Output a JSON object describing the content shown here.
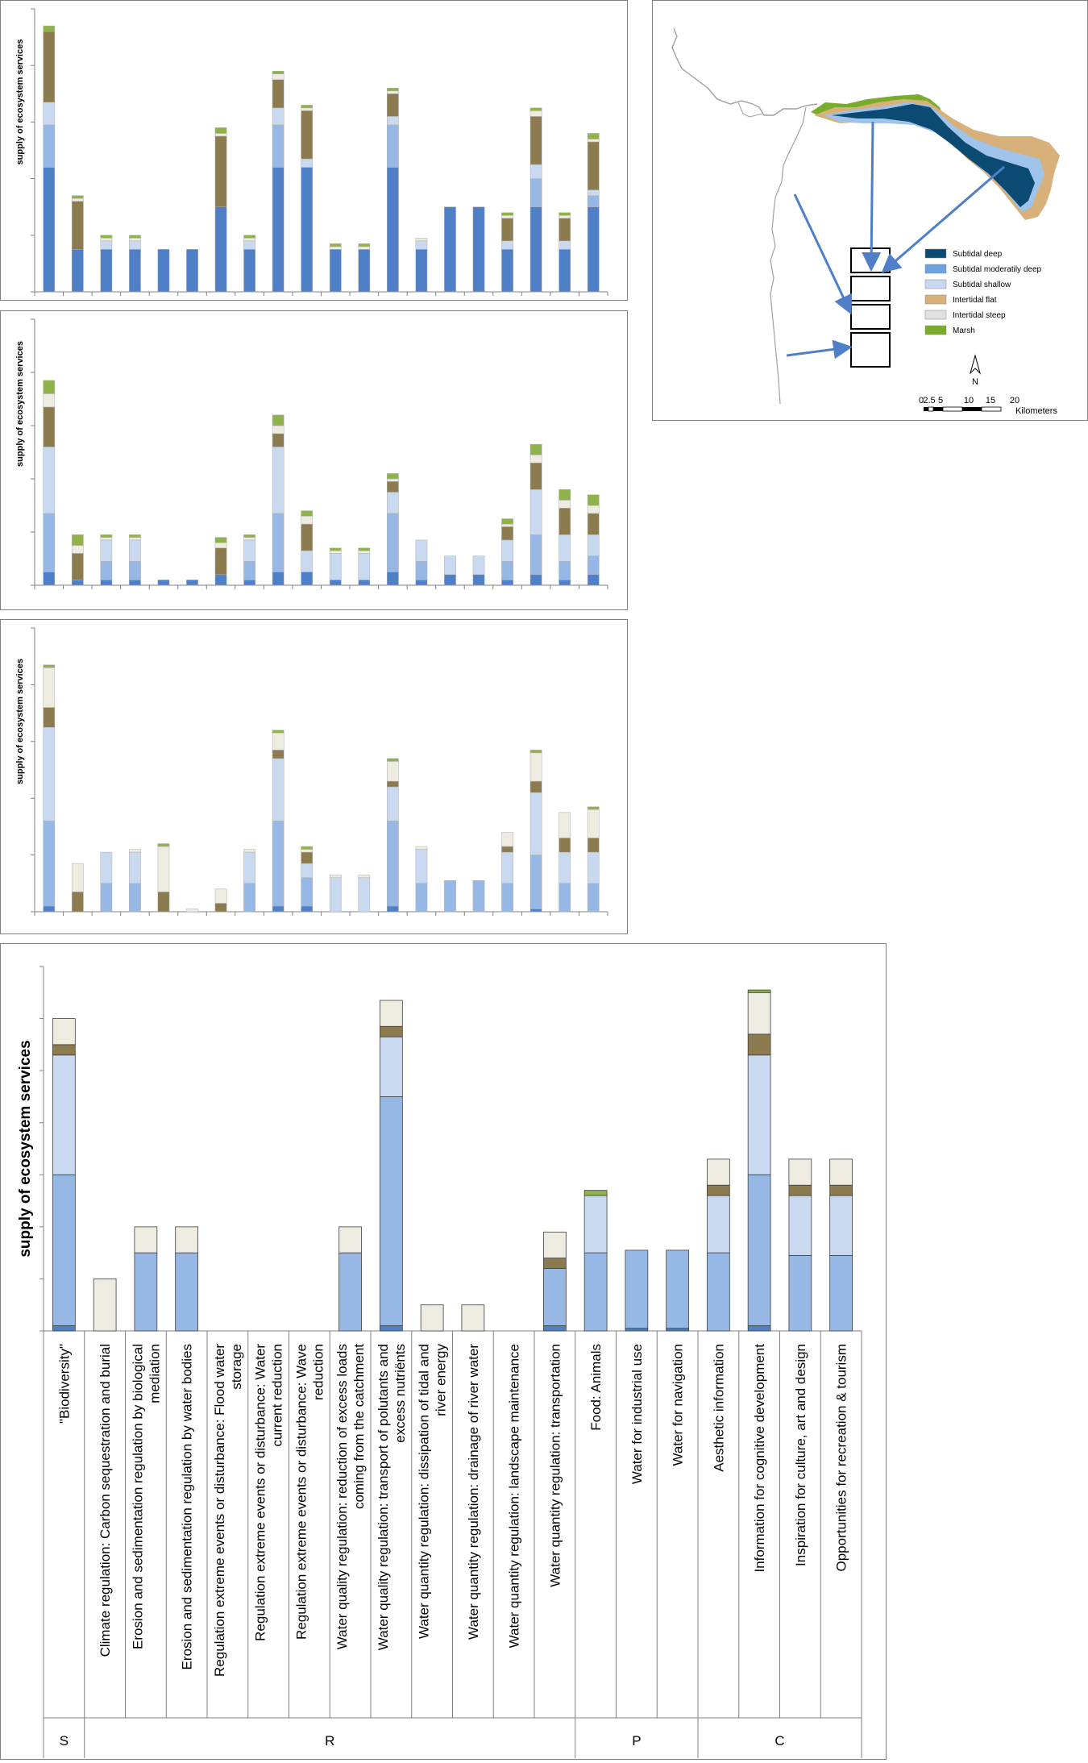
{
  "legend": {
    "classes": [
      {
        "label": "Subtidal deep",
        "color": "#0b4a73"
      },
      {
        "label": "Subtidal moderatily deep",
        "color": "#6fa3e0"
      },
      {
        "label": "Subtidal shallow",
        "color": "#c7d8f0"
      },
      {
        "label": "Intertidal flat",
        "color": "#d8b07a"
      },
      {
        "label": "Intertidal steep",
        "color": "#e0e0e0"
      },
      {
        "label": "Marsh",
        "color": "#7aac2c"
      }
    ],
    "north": "N",
    "scale_ticks": [
      "0",
      "2.5",
      "5",
      "10",
      "15",
      "20"
    ],
    "scale_unit": "Kilometers"
  },
  "stack_colors": [
    "#4f7fc7",
    "#97b7e4",
    "#c9d9ef",
    "#8b7b4e",
    "#eeebe0",
    "#8fb24a"
  ],
  "chart_data": [
    {
      "type": "bar",
      "stacked": true,
      "ylabel": "supply of ecosystem services",
      "ylim": [
        0,
        1
      ],
      "grid": false,
      "values": [
        [
          0.44,
          0.15,
          0.08,
          0.25,
          0,
          0.02
        ],
        [
          0.15,
          0,
          0,
          0.17,
          0.01,
          0.01
        ],
        [
          0.15,
          0,
          0.03,
          0,
          0.01,
          0.01
        ],
        [
          0.15,
          0,
          0.03,
          0,
          0.01,
          0.01
        ],
        [
          0.15,
          0,
          0,
          0,
          0,
          0
        ],
        [
          0.15,
          0,
          0,
          0,
          0,
          0
        ],
        [
          0.3,
          0,
          0,
          0.25,
          0.01,
          0.02
        ],
        [
          0.15,
          0,
          0.03,
          0,
          0.01,
          0.01
        ],
        [
          0.44,
          0.15,
          0.06,
          0.1,
          0.02,
          0.01
        ],
        [
          0.44,
          0,
          0.03,
          0.17,
          0.01,
          0.01
        ],
        [
          0.15,
          0,
          0,
          0,
          0.01,
          0.01
        ],
        [
          0.15,
          0,
          0,
          0,
          0.01,
          0.01
        ],
        [
          0.44,
          0.15,
          0.03,
          0.08,
          0.01,
          0.01
        ],
        [
          0.15,
          0,
          0.03,
          0,
          0.01,
          0
        ],
        [
          0.3,
          0,
          0,
          0,
          0,
          0
        ],
        [
          0.3,
          0,
          0,
          0,
          0,
          0
        ],
        [
          0.15,
          0,
          0.03,
          0.08,
          0.01,
          0.01
        ],
        [
          0.3,
          0.1,
          0.05,
          0.17,
          0.02,
          0.01
        ],
        [
          0.15,
          0,
          0.03,
          0.08,
          0.01,
          0.01
        ],
        [
          0.3,
          0.04,
          0.02,
          0.17,
          0.01,
          0.02
        ]
      ]
    },
    {
      "type": "bar",
      "stacked": true,
      "ylabel": "supply of ecosystem services",
      "ylim": [
        0,
        1
      ],
      "grid": false,
      "values": [
        [
          0.05,
          0.22,
          0.25,
          0.15,
          0.05,
          0.05
        ],
        [
          0.02,
          0,
          0,
          0.1,
          0.03,
          0.04
        ],
        [
          0.02,
          0.07,
          0.08,
          0,
          0.01,
          0.01
        ],
        [
          0.02,
          0.07,
          0.08,
          0,
          0.01,
          0.01
        ],
        [
          0.02,
          0,
          0,
          0,
          0,
          0
        ],
        [
          0.02,
          0,
          0,
          0,
          0,
          0
        ],
        [
          0.04,
          0,
          0,
          0.1,
          0.02,
          0.02
        ],
        [
          0.02,
          0.07,
          0.08,
          0,
          0.01,
          0.01
        ],
        [
          0.05,
          0.22,
          0.25,
          0.05,
          0.03,
          0.04
        ],
        [
          0.05,
          0,
          0.08,
          0.1,
          0.03,
          0.02
        ],
        [
          0.02,
          0,
          0.1,
          0,
          0.01,
          0.01
        ],
        [
          0.02,
          0,
          0.1,
          0,
          0.01,
          0.01
        ],
        [
          0.05,
          0.22,
          0.08,
          0.04,
          0.01,
          0.02
        ],
        [
          0.02,
          0.07,
          0.08,
          0,
          0,
          0
        ],
        [
          0.04,
          0,
          0.07,
          0,
          0,
          0
        ],
        [
          0.04,
          0,
          0.07,
          0,
          0,
          0
        ],
        [
          0.02,
          0.07,
          0.08,
          0.05,
          0.01,
          0.02
        ],
        [
          0.04,
          0.15,
          0.17,
          0.1,
          0.03,
          0.04
        ],
        [
          0.02,
          0.07,
          0.1,
          0.1,
          0.03,
          0.04
        ],
        [
          0.04,
          0.07,
          0.08,
          0.08,
          0.03,
          0.04
        ]
      ]
    },
    {
      "type": "bar",
      "stacked": true,
      "ylabel": "supply of ecosystem services",
      "ylim": [
        0,
        1
      ],
      "grid": false,
      "values": [
        [
          0.02,
          0.3,
          0.33,
          0.07,
          0.14,
          0.01
        ],
        [
          0,
          0,
          0,
          0.07,
          0.1,
          0
        ],
        [
          0,
          0.1,
          0.11,
          0,
          0,
          0
        ],
        [
          0,
          0.1,
          0.11,
          0,
          0.01,
          0
        ],
        [
          0,
          0,
          0,
          0.07,
          0.16,
          0.01
        ],
        [
          0,
          0,
          0,
          0,
          0.01,
          0
        ],
        [
          0,
          0,
          0,
          0.03,
          0.05,
          0
        ],
        [
          0,
          0.1,
          0.11,
          0,
          0.01,
          0
        ],
        [
          0.02,
          0.3,
          0.22,
          0.03,
          0.06,
          0.01
        ],
        [
          0.02,
          0.1,
          0.05,
          0.04,
          0.01,
          0.01
        ],
        [
          0,
          0,
          0.12,
          0,
          0.01,
          0
        ],
        [
          0,
          0,
          0.12,
          0,
          0.01,
          0
        ],
        [
          0.02,
          0.3,
          0.12,
          0.02,
          0.07,
          0.01
        ],
        [
          0,
          0.1,
          0.12,
          0,
          0.01,
          0
        ],
        [
          0,
          0.11,
          0,
          0,
          0,
          0
        ],
        [
          0,
          0.11,
          0,
          0,
          0,
          0
        ],
        [
          0,
          0.1,
          0.11,
          0.02,
          0.05,
          0
        ],
        [
          0.01,
          0.19,
          0.22,
          0.04,
          0.1,
          0.01
        ],
        [
          0,
          0.1,
          0.11,
          0.05,
          0.09,
          0
        ],
        [
          0,
          0.1,
          0.11,
          0.05,
          0.1,
          0.01
        ]
      ]
    },
    {
      "type": "bar",
      "stacked": true,
      "ylabel": "supply of ecosystem services",
      "ylim": [
        0,
        1.4
      ],
      "grid": false,
      "categories": [
        "\"Biodiversity\"",
        "Climate regulation: Carbon sequestration and burial",
        "Erosion and sedimentation regulation by biological mediation",
        "Erosion and sedimentation regulation by water bodies",
        "Regulation extreme events or disturbance: Flood water storage",
        "Regulation extreme events or disturbance: Water current reduction",
        "Regulation extreme events or disturbance: Wave reduction",
        "Water quality regulation: reduction of excess loads coming from the catchment",
        "Water quality regulation: transport of polutants and excess nutriënts",
        "Water quantity regulation: dissipation of tidal and river energy",
        "Water quantity regulation: drainage of river water",
        "Water quantity regulation: landscape maintenance",
        "Water quantity regulation: transportation",
        "Food: Animals",
        "Water for industrial use",
        "Water for navigation",
        "Aesthetic information",
        "Information for cognitive development",
        "Inspiration for culture, art and design",
        "Opportunities for recreation & tourism"
      ],
      "groups": [
        {
          "label": "S",
          "count": 1
        },
        {
          "label": "R",
          "count": 12
        },
        {
          "label": "P",
          "count": 3
        },
        {
          "label": "C",
          "count": 4
        }
      ],
      "values": [
        [
          0.02,
          0.58,
          0.46,
          0.04,
          0.1,
          0
        ],
        [
          0,
          0,
          0,
          0,
          0.2,
          0
        ],
        [
          0,
          0.3,
          0,
          0,
          0.1,
          0
        ],
        [
          0,
          0.3,
          0,
          0,
          0.1,
          0
        ],
        [
          0,
          0,
          0,
          0,
          0,
          0
        ],
        [
          0,
          0,
          0,
          0,
          0,
          0
        ],
        [
          0,
          0,
          0,
          0,
          0,
          0
        ],
        [
          0,
          0.3,
          0,
          0,
          0.1,
          0
        ],
        [
          0.02,
          0.88,
          0.23,
          0.04,
          0.1,
          0
        ],
        [
          0,
          0,
          0,
          0,
          0.1,
          0
        ],
        [
          0,
          0,
          0,
          0,
          0.1,
          0
        ],
        [
          0,
          0,
          0,
          0,
          0,
          0
        ],
        [
          0.02,
          0.22,
          0,
          0.04,
          0.1,
          0
        ],
        [
          0,
          0.3,
          0.22,
          0,
          0,
          0.02
        ],
        [
          0.01,
          0.3,
          0,
          0,
          0,
          0
        ],
        [
          0.01,
          0.3,
          0,
          0,
          0,
          0
        ],
        [
          0,
          0.3,
          0.22,
          0.04,
          0.1,
          0
        ],
        [
          0.02,
          0.58,
          0.46,
          0.08,
          0.16,
          0.01
        ],
        [
          0,
          0.29,
          0.23,
          0.04,
          0.1,
          0
        ],
        [
          0,
          0.29,
          0.23,
          0.04,
          0.1,
          0
        ]
      ]
    }
  ]
}
